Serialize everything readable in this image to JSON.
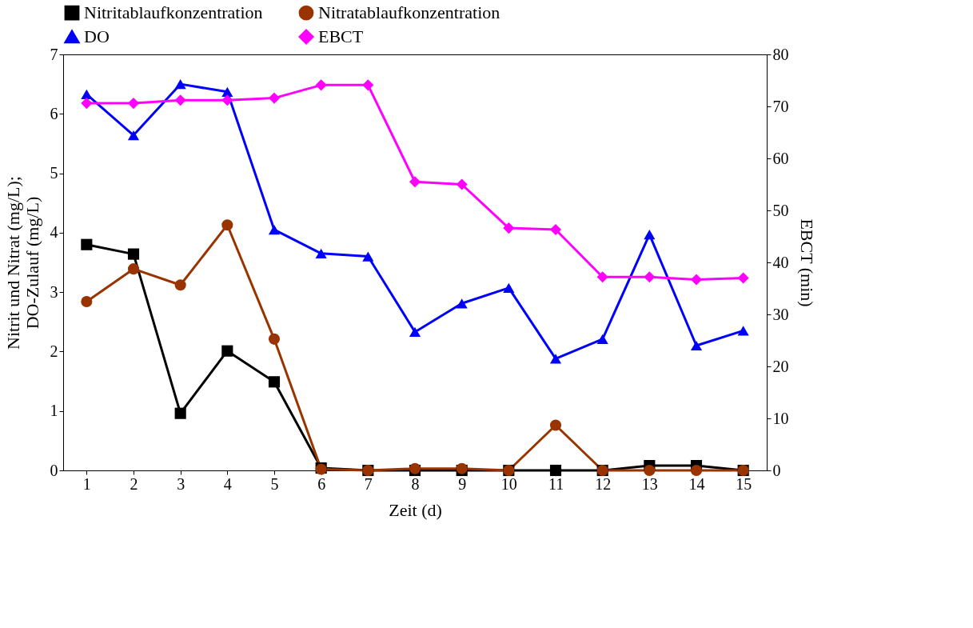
{
  "chart_data": {
    "type": "line",
    "xlabel": "Zeit (d)",
    "ylabel": "Nitrit und Nitrat (mg/L);\nDO-Zulauf  (mg/L)",
    "y2label": "EBCT (min)",
    "x": [
      1,
      2,
      3,
      4,
      5,
      6,
      7,
      8,
      9,
      10,
      11,
      12,
      13,
      14,
      15
    ],
    "xlim": [
      0.5,
      15.5
    ],
    "xticks": [
      1,
      2,
      3,
      4,
      5,
      6,
      7,
      8,
      9,
      10,
      11,
      12,
      13,
      14,
      15
    ],
    "ylim": [
      0,
      7
    ],
    "yticks": [
      0,
      1,
      2,
      3,
      4,
      5,
      6,
      7
    ],
    "y2lim": [
      0,
      80
    ],
    "y2ticks": [
      0,
      10,
      20,
      30,
      40,
      50,
      60,
      70,
      80
    ],
    "grid": false,
    "legend": "top",
    "line_style": "solid",
    "series": [
      {
        "name": "Nitritablaufkonzentration",
        "color": "#000000",
        "marker": "square",
        "values": [
          3.8,
          3.64,
          0.96,
          2.01,
          1.49,
          0.04,
          0,
          0,
          0,
          0,
          0,
          0,
          0.08,
          0.08,
          0
        ]
      },
      {
        "name": "Nitratablaufkonzentration",
        "color": "#993300",
        "marker": "circle",
        "values": [
          2.84,
          3.39,
          3.12,
          4.13,
          2.21,
          0.02,
          0,
          0.03,
          0.03,
          0,
          0.76,
          0,
          0,
          0,
          0
        ]
      },
      {
        "name": "DO",
        "color": "#0000ff",
        "marker": "triangle",
        "values": [
          6.33,
          5.64,
          6.5,
          6.37,
          4.05,
          3.65,
          3.6,
          2.33,
          2.81,
          3.07,
          1.88,
          2.21,
          3.97,
          2.1,
          2.35
        ]
      },
      {
        "name": "EBCT",
        "color": "#ff00ff",
        "marker": "diamond",
        "axis": "y2",
        "values": [
          70.6,
          70.6,
          71.2,
          71.2,
          71.6,
          74.1,
          74.1,
          55.5,
          55.0,
          46.6,
          46.3,
          37.2,
          37.2,
          36.7,
          37.0
        ]
      }
    ]
  }
}
